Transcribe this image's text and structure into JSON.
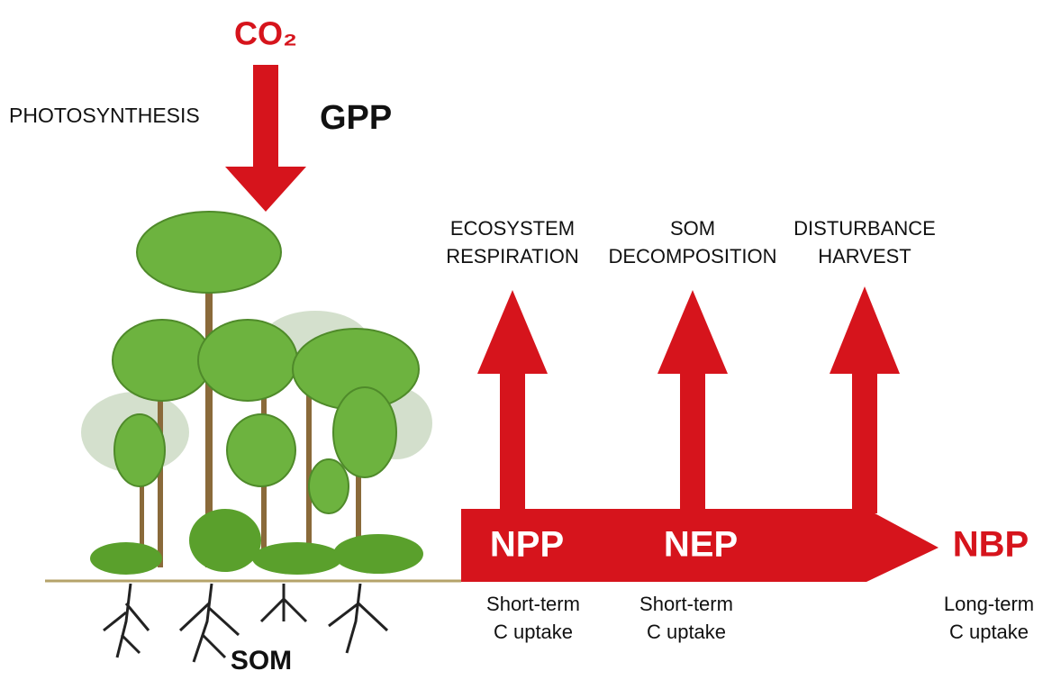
{
  "input": {
    "gas": "CO₂",
    "process": "PHOTOSYNTHESIS",
    "flux": "GPP"
  },
  "losses": [
    {
      "lines": [
        "ECOSYSTEM",
        "RESPIRATION"
      ]
    },
    {
      "lines": [
        "SOM",
        "DECOMPOSITION"
      ]
    },
    {
      "lines": [
        "DISTURBANCE",
        "HARVEST"
      ]
    }
  ],
  "fluxes": [
    {
      "label": "NPP",
      "note": [
        "Short-term",
        "C uptake"
      ]
    },
    {
      "label": "NEP",
      "note": [
        "Short-term",
        "C uptake"
      ]
    },
    {
      "label": "NBP",
      "note": [
        "Long-term",
        "C uptake"
      ]
    }
  ],
  "soil": "SOM"
}
